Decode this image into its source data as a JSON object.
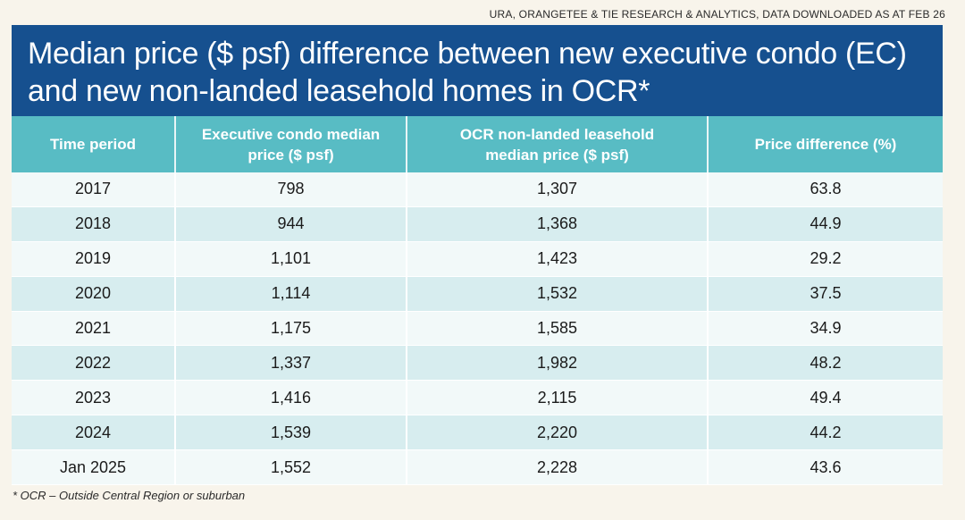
{
  "source": "URA, ORANGETEE & TIE RESEARCH & ANALYTICS, DATA DOWNLOADED AS AT FEB 26",
  "title_line1": "Median price ($ psf) difference between new executive condo (EC)",
  "title_line2": "and new non-landed leasehold homes in OCR*",
  "headers": {
    "period": "Time period",
    "ec_line1": "Executive condo median",
    "ec_line2": "price ($ psf)",
    "ocr_line1": "OCR non-landed leasehold",
    "ocr_line2": "median price ($ psf)",
    "diff": "Price difference (%)"
  },
  "footnote": "* OCR – Outside Central Region or suburban",
  "colors": {
    "title_bg": "#16508f",
    "header_bg": "#58bcc4",
    "row_light": "#f2f9f9",
    "row_dark": "#d7edef",
    "page_bg": "#f8f4eb"
  },
  "chart_data": {
    "type": "table",
    "columns": [
      "Time period",
      "Executive condo median price ($ psf)",
      "OCR non-landed leasehold median price ($ psf)",
      "Price difference (%)"
    ],
    "rows": [
      [
        "2017",
        "798",
        "1,307",
        "63.8"
      ],
      [
        "2018",
        "944",
        "1,368",
        "44.9"
      ],
      [
        "2019",
        "1,101",
        "1,423",
        "29.2"
      ],
      [
        "2020",
        "1,114",
        "1,532",
        "37.5"
      ],
      [
        "2021",
        "1,175",
        "1,585",
        "34.9"
      ],
      [
        "2022",
        "1,337",
        "1,982",
        "48.2"
      ],
      [
        "2023",
        "1,416",
        "2,115",
        "49.4"
      ],
      [
        "2024",
        "1,539",
        "2,220",
        "44.2"
      ],
      [
        "Jan 2025",
        "1,552",
        "2,228",
        "43.6"
      ]
    ]
  }
}
